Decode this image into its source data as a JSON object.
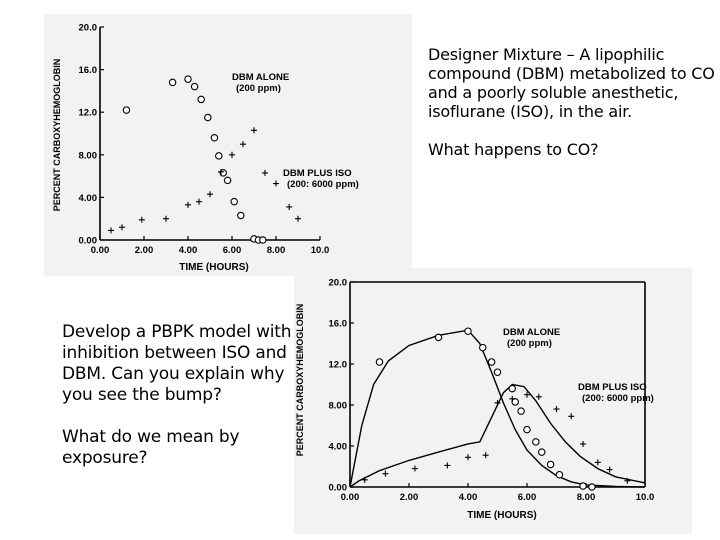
{
  "slide": {
    "top_text": [
      "Designer Mixture – A lipophilic compound (DBM) metabolized to CO and a poorly soluble anesthetic, isoflurane (ISO), in the air.",
      "What happens to CO?"
    ],
    "left_text": [
      "Develop a PBPK model with inhibition between ISO and DBM. Can you explain why you see the bump?",
      "What do we mean by exposure?"
    ]
  },
  "chart_data": [
    {
      "type": "scatter",
      "title": "",
      "xlabel": "TIME (HOURS)",
      "ylabel": "PERCENT CARBOXYHEMOGLOBIN",
      "xlim": [
        0,
        10
      ],
      "ylim": [
        0,
        20
      ],
      "x_ticks": [
        "0.00",
        "2.00",
        "4.00",
        "6.00",
        "8.00",
        "10.0"
      ],
      "y_ticks": [
        "0.00",
        "4.00",
        "8.00",
        "12.0",
        "16.0",
        "20.0"
      ],
      "annotations": [
        {
          "lines": [
            "DBM ALONE",
            "(200 ppm)"
          ]
        },
        {
          "lines": [
            "DBM PLUS ISO",
            "(200:  6000 ppm)"
          ]
        }
      ],
      "series": [
        {
          "marker": "circle",
          "points": [
            [
              1.2,
              12.2
            ],
            [
              3.3,
              14.8
            ],
            [
              4.0,
              15.1
            ],
            [
              4.3,
              14.4
            ],
            [
              4.6,
              13.2
            ],
            [
              4.9,
              11.5
            ],
            [
              5.2,
              9.6
            ],
            [
              5.4,
              7.9
            ],
            [
              5.6,
              6.3
            ],
            [
              5.8,
              5.6
            ],
            [
              6.1,
              3.6
            ],
            [
              6.4,
              2.3
            ],
            [
              7.0,
              0.1
            ],
            [
              7.2,
              0.0
            ],
            [
              7.4,
              0.0
            ]
          ]
        },
        {
          "marker": "plus",
          "points": [
            [
              0.5,
              0.9
            ],
            [
              1.0,
              1.2
            ],
            [
              1.9,
              1.9
            ],
            [
              3.0,
              2.0
            ],
            [
              4.0,
              3.3
            ],
            [
              4.5,
              3.6
            ],
            [
              5.0,
              4.3
            ],
            [
              5.5,
              6.4
            ],
            [
              6.0,
              8.0
            ],
            [
              6.5,
              9.0
            ],
            [
              7.0,
              10.3
            ],
            [
              7.5,
              6.3
            ],
            [
              8.0,
              5.3
            ],
            [
              8.6,
              3.1
            ],
            [
              9.0,
              2.0
            ]
          ]
        }
      ]
    },
    {
      "type": "scatter",
      "title": "",
      "xlabel": "TIME (HOURS)",
      "ylabel": "PERCENT CARBOXYHEMOGLOBIN",
      "xlim": [
        0,
        10
      ],
      "ylim": [
        0,
        20
      ],
      "x_ticks": [
        "0.00",
        "2.00",
        "4.00",
        "6.00",
        "8.00",
        "10.0"
      ],
      "y_ticks": [
        "0.00",
        "4.00",
        "8.00",
        "12.0",
        "16.0",
        "20.0"
      ],
      "annotations": [
        {
          "lines": [
            "DBM ALONE",
            "(200 ppm)"
          ]
        },
        {
          "lines": [
            "DBM PLUS ISO",
            "(200:  6000 ppm)"
          ]
        }
      ],
      "series": [
        {
          "marker": "circle",
          "points": [
            [
              1.0,
              12.2
            ],
            [
              3.0,
              14.6
            ],
            [
              4.0,
              15.2
            ],
            [
              4.5,
              13.6
            ],
            [
              4.8,
              12.2
            ],
            [
              5.0,
              11.2
            ],
            [
              5.5,
              9.6
            ],
            [
              5.6,
              8.3
            ],
            [
              5.8,
              7.4
            ],
            [
              6.0,
              5.6
            ],
            [
              6.3,
              4.4
            ],
            [
              6.5,
              3.4
            ],
            [
              6.8,
              2.2
            ],
            [
              7.1,
              1.2
            ],
            [
              7.9,
              0.1
            ],
            [
              8.2,
              0.0
            ]
          ]
        },
        {
          "marker": "plus",
          "points": [
            [
              0.5,
              0.7
            ],
            [
              1.2,
              1.3
            ],
            [
              2.2,
              1.8
            ],
            [
              3.3,
              2.1
            ],
            [
              4.0,
              2.9
            ],
            [
              4.6,
              3.1
            ],
            [
              5.0,
              8.2
            ],
            [
              5.5,
              8.6
            ],
            [
              6.0,
              9.0
            ],
            [
              6.4,
              8.8
            ],
            [
              7.0,
              7.6
            ],
            [
              7.5,
              6.9
            ],
            [
              7.9,
              4.2
            ],
            [
              8.4,
              2.4
            ],
            [
              8.8,
              1.7
            ],
            [
              9.4,
              0.6
            ]
          ]
        }
      ],
      "curves": [
        {
          "name": "DBM ALONE model",
          "points": [
            [
              0.0,
              0.0
            ],
            [
              0.4,
              6.0
            ],
            [
              0.8,
              10.0
            ],
            [
              1.3,
              12.3
            ],
            [
              2.0,
              13.8
            ],
            [
              3.0,
              14.8
            ],
            [
              4.0,
              15.3
            ],
            [
              4.4,
              14.0
            ],
            [
              4.8,
              11.2
            ],
            [
              5.2,
              8.2
            ],
            [
              5.6,
              5.6
            ],
            [
              6.0,
              3.6
            ],
            [
              6.5,
              2.1
            ],
            [
              7.0,
              1.1
            ],
            [
              7.5,
              0.5
            ],
            [
              8.0,
              0.2
            ],
            [
              9.0,
              0.05
            ],
            [
              10.0,
              0.0
            ]
          ]
        },
        {
          "name": "DBM PLUS ISO model",
          "points": [
            [
              0.0,
              0.0
            ],
            [
              0.3,
              0.6
            ],
            [
              1.0,
              1.6
            ],
            [
              2.0,
              2.6
            ],
            [
              3.0,
              3.4
            ],
            [
              4.0,
              4.2
            ],
            [
              4.4,
              4.4
            ],
            [
              4.8,
              6.8
            ],
            [
              5.2,
              9.2
            ],
            [
              5.5,
              10.0
            ],
            [
              5.9,
              9.8
            ],
            [
              6.3,
              8.4
            ],
            [
              6.8,
              6.2
            ],
            [
              7.3,
              4.4
            ],
            [
              7.8,
              3.0
            ],
            [
              8.4,
              1.8
            ],
            [
              9.0,
              1.0
            ],
            [
              10.0,
              0.4
            ]
          ]
        }
      ]
    }
  ]
}
